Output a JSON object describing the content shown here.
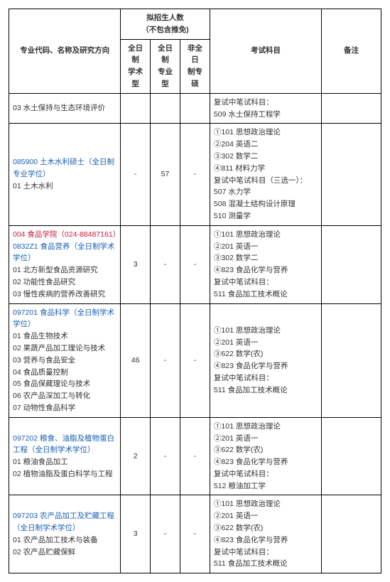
{
  "headers": {
    "major": "专业代码、名称及研究方向",
    "enroll": "拟招生人数\n（不包含推免)",
    "sub1": "全日制\n学术型",
    "sub2": "全日制\n专业型",
    "sub3": "非全日\n制专硕",
    "exam": "考试科目",
    "note": "备注"
  },
  "rows": [
    {
      "major_lines": [
        "03 水土保持与生态环境评价"
      ],
      "major_classes": [
        ""
      ],
      "c1": "",
      "c2": "",
      "c3": "",
      "exam_lines": [
        "复试中笔试科目：",
        "509 水土保持工程学"
      ],
      "note": ""
    },
    {
      "major_lines": [
        "085900 土木水利硕士（全日制专业学位）",
        "01 土木水利"
      ],
      "major_classes": [
        "link",
        ""
      ],
      "c1": "-",
      "c2": "57",
      "c3": "-",
      "exam_lines": [
        "①101 思想政治理论",
        "②204 英语二",
        "③302 数学二",
        "④811 材料力学",
        "复试中笔试科目（三选一）：",
        "507 水力学",
        "508 混凝土结构设计原理",
        "510 测量学"
      ],
      "note": ""
    },
    {
      "major_lines": [
        "004 食品学院（024-88487161）",
        "0832Z1 食品营养（全日制学术学位）",
        "01 北方新型食品资源研究",
        "02 功能性食品研究",
        "03 慢性疾病的营养改善研究"
      ],
      "major_classes": [
        "red",
        "link",
        "",
        "",
        ""
      ],
      "c1": "3",
      "c2": "-",
      "c3": "-",
      "exam_lines": [
        "①101 思想政治理论",
        "②201 英语一",
        "③302 数学二",
        "④823 食品化学与营养",
        "复试中笔试科目：",
        "511 食品加工技术概论"
      ],
      "note": ""
    },
    {
      "major_lines": [
        "097201 食品科学（全日制学术学位）",
        "01 食品生物技术",
        "02 果蔬产品加工理论与技术",
        "03 营养与食品安全",
        "04 食品质量控制",
        "05 食品保藏理论与技术",
        "06 农产品深加工与转化",
        "07 动物性食品科学"
      ],
      "major_classes": [
        "link",
        "",
        "",
        "",
        "",
        "",
        "",
        ""
      ],
      "c1": "46",
      "c2": "-",
      "c3": "-",
      "exam_lines": [
        "①101 思想政治理论",
        "②201 英语一",
        "③622 数学(农)",
        "④823 食品化学与营养",
        "复试中笔试科目：",
        "511 食品加工技术概论"
      ],
      "note": ""
    },
    {
      "major_lines": [
        "097202 粮食、油脂及植物蛋白工程（全日制学术学位）",
        "01 粮油食品加工",
        "02 植物油脂及蛋白科学与工程"
      ],
      "major_classes": [
        "link",
        "",
        ""
      ],
      "c1": "2",
      "c2": "-",
      "c3": "-",
      "exam_lines": [
        "①101 思想政治理论",
        "②201 英语一",
        "③622 数学(农)",
        "④823 食品化学与营养",
        "复试中笔试科目：",
        "512 粮油加工学"
      ],
      "note": ""
    },
    {
      "major_lines": [
        "097203 农产品加工及贮藏工程（全日制学术学位）",
        "01 农产品加工技术与装备",
        "02 农产品贮藏保鲜"
      ],
      "major_classes": [
        "link",
        "",
        ""
      ],
      "c1": "3",
      "c2": "-",
      "c3": "-",
      "exam_lines": [
        "①101 思想政治理论",
        "②201 英语一",
        "③622 数学(农)",
        "④823 食品化学与营养",
        "复试中笔试科目：",
        "511 食品加工技术概论"
      ],
      "note": ""
    }
  ]
}
